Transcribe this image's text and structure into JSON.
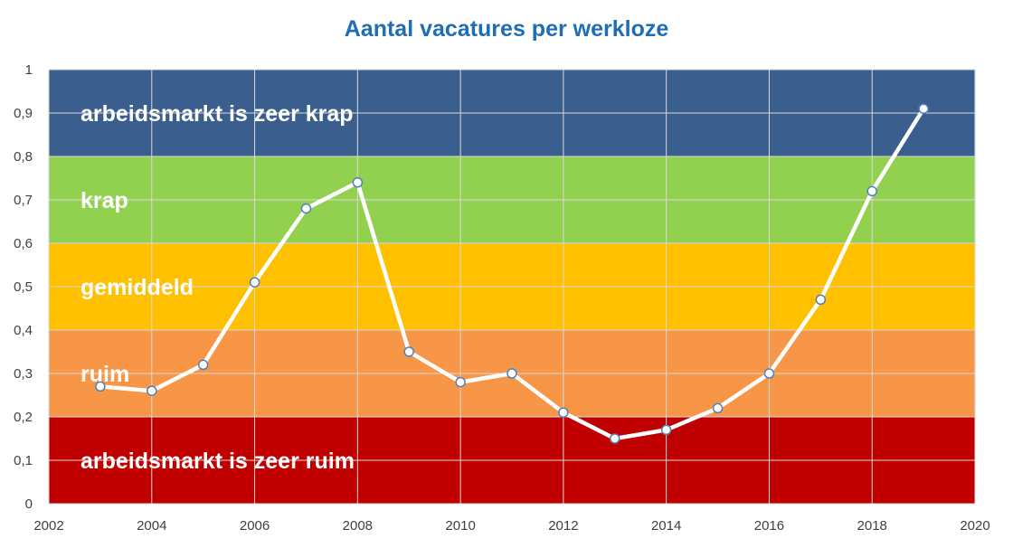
{
  "chart_data": {
    "type": "line",
    "title": "Aantal vacatures per werkloze",
    "xlabel": "",
    "ylabel": "",
    "xlim": [
      2002,
      2020
    ],
    "ylim": [
      0,
      1
    ],
    "x_ticks": [
      "2002",
      "2004",
      "2006",
      "2008",
      "2010",
      "2012",
      "2014",
      "2016",
      "2018",
      "2020"
    ],
    "y_ticks": [
      "0",
      "0,1",
      "0,2",
      "0,3",
      "0,4",
      "0,5",
      "0,6",
      "0,7",
      "0,8",
      "0,9",
      "1"
    ],
    "grid": true,
    "series": [
      {
        "x": [
          2003,
          2004,
          2005,
          2006,
          2007,
          2008,
          2009,
          2010,
          2011,
          2012,
          2013,
          2014,
          2015,
          2016,
          2017,
          2018,
          2019
        ],
        "values": [
          0.27,
          0.26,
          0.32,
          0.51,
          0.68,
          0.74,
          0.35,
          0.28,
          0.3,
          0.21,
          0.15,
          0.17,
          0.22,
          0.3,
          0.47,
          0.72,
          0.91
        ],
        "color": "#ffffff",
        "marker_fill": "#ffffff",
        "marker_edge": "#4f81bd"
      }
    ],
    "bands": [
      {
        "from": 0.8,
        "to": 1.0,
        "label": "arbeidsmarkt is zeer krap",
        "color": "#3a5f8f"
      },
      {
        "from": 0.6,
        "to": 0.8,
        "label": "krap",
        "color": "#92d050"
      },
      {
        "from": 0.4,
        "to": 0.6,
        "label": "gemiddeld",
        "color": "#ffc000"
      },
      {
        "from": 0.2,
        "to": 0.4,
        "label": "ruim",
        "color": "#f79646"
      },
      {
        "from": 0.0,
        "to": 0.2,
        "label": "arbeidsmarkt is zeer ruim",
        "color": "#c00000"
      }
    ]
  }
}
